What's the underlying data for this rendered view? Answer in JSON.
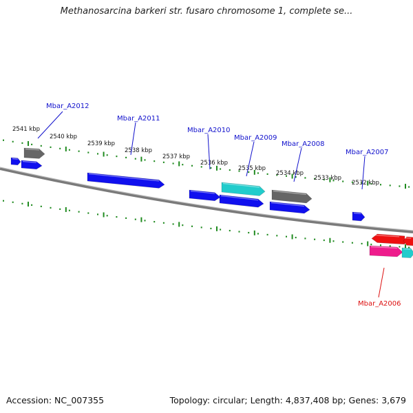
{
  "title": "Methanosarcina barkeri str. fusaro chromosome 1, complete se...",
  "accession": "Accession: NC_007355",
  "topology": "Topology: circular; Length: 4,837,408 bp; Genes: 3,679",
  "colors": {
    "backbone": "#8a8a8a",
    "tick": "#1f8a1f",
    "forward_gene": "#1010ee",
    "reverse_gene": "#ee1010",
    "gray_gene": "#666666",
    "cyan_gene": "#22cccc",
    "pink_gene": "#ee1c8c",
    "label_forward": "#1010cc",
    "label_reverse": "#dd1010"
  },
  "kbp_labels": [
    "2541 kbp",
    "2540 kbp",
    "2539 kbp",
    "2538 kbp",
    "2537 kbp",
    "2536 kbp",
    "2535 kbp",
    "2534 kbp",
    "2533 kbp",
    "2532 kbp"
  ],
  "gene_labels": [
    "Mbar_A2012",
    "Mbar_A2011",
    "Mbar_A2010",
    "Mbar_A2009",
    "Mbar_A2008",
    "Mbar_A2007",
    "Mbar_A2006"
  ]
}
